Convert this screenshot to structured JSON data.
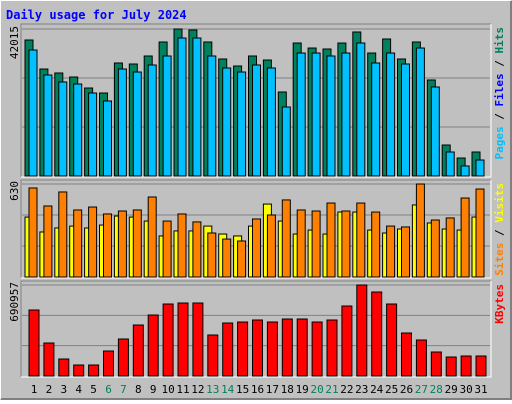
{
  "chart_data": [
    {
      "type": "bar",
      "title": "Daily usage for July 2024",
      "legend_separator": " / ",
      "ylim": [
        0,
        42015
      ],
      "yticks": [
        42015
      ],
      "series": [
        {
          "name": "Pages",
          "color": "#00c0ff",
          "values": [
            36010,
            28870,
            26870,
            26290,
            23720,
            21440,
            30580,
            29720,
            31730,
            34300,
            39440,
            39440,
            34300,
            30870,
            29720,
            31730,
            30870,
            19720,
            35150,
            35150,
            34300,
            35150,
            38010,
            32300,
            35150,
            32010,
            36580,
            25440,
            6860,
            2860,
            4570
          ]
        },
        {
          "name": "Files",
          "color": "#0000ff",
          "values": [
            13720,
            5430,
            5720,
            3720,
            3720,
            4570,
            8570,
            7430,
            18580,
            20290,
            24010,
            23720,
            16000,
            13720,
            13720,
            13720,
            13720,
            10290,
            13720,
            13720,
            13720,
            13720,
            13720,
            13720,
            13720,
            13720,
            13720,
            7430,
            2290,
            1710,
            2000
          ]
        },
        {
          "name": "Hits",
          "color": "#00805c",
          "values": [
            38870,
            30580,
            29440,
            28295,
            25150,
            23720,
            32300,
            32010,
            34300,
            38300,
            42015,
            41730,
            38300,
            33440,
            31440,
            34300,
            33150,
            24010,
            38010,
            36580,
            36300,
            38010,
            41160,
            35150,
            39160,
            33440,
            38300,
            27440,
            8860,
            5140,
            6860
          ]
        }
      ]
    },
    {
      "type": "bar",
      "legend_separator": " / ",
      "ylim": [
        0,
        630
      ],
      "yticks": [
        630
      ],
      "series": [
        {
          "name": "Sites",
          "color": "#ff8000",
          "values": [
            603,
            481,
            576,
            454,
            474,
            427,
            447,
            454,
            542,
            379,
            427,
            373,
            298,
            257,
            244,
            393,
            420,
            522,
            454,
            447,
            501,
            447,
            501,
            440,
            345,
            339,
            630,
            386,
            400,
            535,
            596
          ]
        },
        {
          "name": "Visits",
          "color": "#ffff00",
          "values": [
            406,
            305,
            332,
            345,
            332,
            352,
            413,
            406,
            379,
            278,
            312,
            312,
            345,
            291,
            278,
            345,
            494,
            379,
            291,
            318,
            291,
            440,
            440,
            318,
            298,
            325,
            488,
            366,
            325,
            318,
            406
          ]
        }
      ]
    },
    {
      "type": "bar",
      "ylim": [
        0,
        690957
      ],
      "yticks": [
        690957
      ],
      "categories": [
        "1",
        "2",
        "3",
        "4",
        "5",
        "6",
        "7",
        "8",
        "9",
        "10",
        "11",
        "12",
        "13",
        "14",
        "15",
        "16",
        "17",
        "18",
        "19",
        "20",
        "21",
        "22",
        "23",
        "24",
        "25",
        "26",
        "27",
        "28",
        "29",
        "30",
        "31"
      ],
      "category_colors": [
        "#000000",
        "#000000",
        "#000000",
        "#000000",
        "#000000",
        "#00805c",
        "#00805c",
        "#000000",
        "#000000",
        "#000000",
        "#000000",
        "#000000",
        "#00805c",
        "#00805c",
        "#000000",
        "#000000",
        "#000000",
        "#000000",
        "#000000",
        "#00805c",
        "#00805c",
        "#000000",
        "#000000",
        "#000000",
        "#000000",
        "#000000",
        "#00805c",
        "#00805c",
        "#000000",
        "#000000",
        "#000000"
      ],
      "series": [
        {
          "name": "KBytes",
          "color": "#ff0000",
          "values": [
            501133,
            250567,
            129080,
            83520,
            83520,
            189820,
            280930,
            387230,
            463150,
            546670,
            554260,
            554260,
            311300,
            402410,
            410000,
            425190,
            410000,
            432780,
            432780,
            410000,
            425190,
            531480,
            690957,
            637780,
            546670,
            326490,
            273340,
            182230,
            144260,
            151860,
            151860
          ]
        }
      ]
    }
  ]
}
